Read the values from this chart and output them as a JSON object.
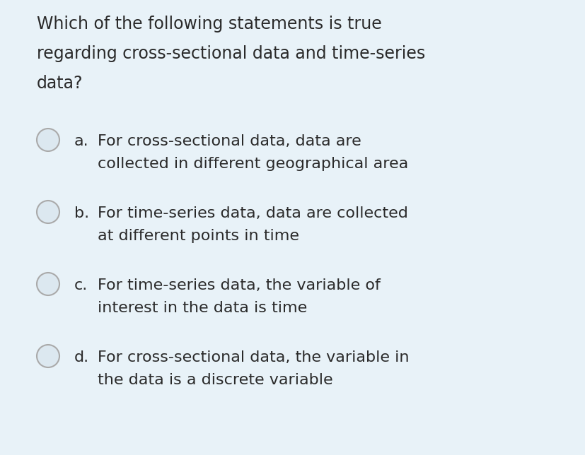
{
  "background_color": "#e8f2f8",
  "title_text": "Which of the following statements is true\nregarding cross-sectional data and time-series\ndata?",
  "title_fontsize": 17,
  "title_color": "#2a2a2a",
  "options": [
    {
      "label": "a.",
      "line1": "For cross-sectional data, data are",
      "line2": "collected in different geographical area"
    },
    {
      "label": "b.",
      "line1": "For time-series data, data are collected",
      "line2": "at different points in time"
    },
    {
      "label": "c.",
      "line1": "For time-series data, the variable of",
      "line2": "interest in the data is time"
    },
    {
      "label": "d.",
      "line1": "For cross-sectional data, the variable in",
      "line2": "the data is a discrete variable"
    }
  ],
  "option_fontsize": 16,
  "circle_edge_color": "#aaaaaa",
  "circle_face_color": "#dce8f0",
  "circle_linewidth": 1.5,
  "text_color": "#2a2a2a",
  "label_color": "#2a2a2a"
}
